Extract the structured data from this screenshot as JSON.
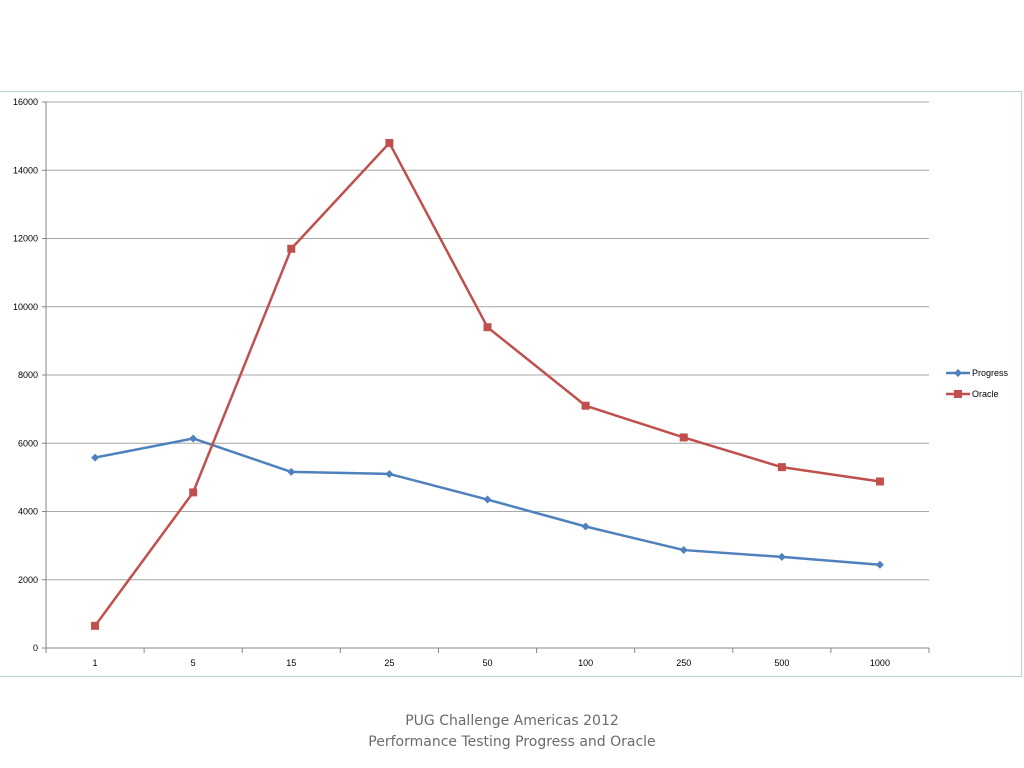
{
  "chart_data": {
    "type": "line",
    "categories": [
      "1",
      "5",
      "15",
      "25",
      "50",
      "100",
      "250",
      "500",
      "1000"
    ],
    "series": [
      {
        "name": "Progress",
        "color": "#4f81bd",
        "marker": "diamond",
        "values": [
          5580,
          6140,
          5160,
          5100,
          4350,
          3560,
          2870,
          2670,
          2440
        ]
      },
      {
        "name": "Oracle",
        "color": "#c0504d",
        "marker": "square",
        "values": [
          650,
          4560,
          11700,
          14800,
          9400,
          7100,
          6170,
          5300,
          4880
        ]
      }
    ],
    "ylim": [
      0,
      16000
    ],
    "yticks": [
      0,
      2000,
      4000,
      6000,
      8000,
      10000,
      12000,
      14000,
      16000
    ],
    "grid": true,
    "legend_position": "right",
    "gridline_color": "#a6a6a6"
  },
  "footer": {
    "line1": "PUG Challenge Americas 2012",
    "line2": "Performance Testing Progress and Oracle"
  }
}
